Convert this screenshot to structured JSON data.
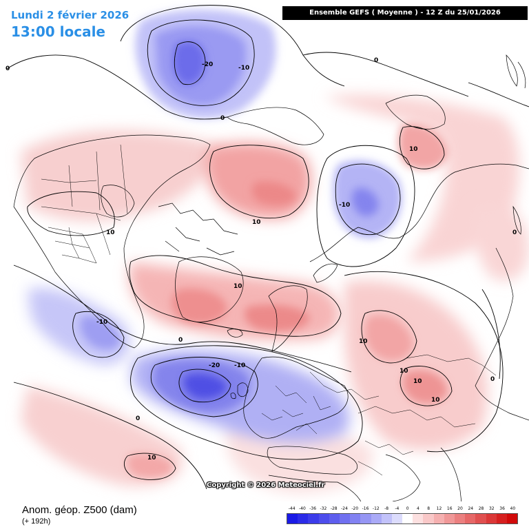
{
  "header": {
    "date": "Lundi 2 février 2026",
    "local_time": "13:00 locale",
    "model_run": "Ensemble GEFS  ( Moyenne )  -  12 Z du 25/01/2026"
  },
  "footer": {
    "variable": "Anom. géop. Z500 (dam)",
    "lead_time": "(+ 192h)",
    "copyright": "Copyright © 2026 Meteociel.fr"
  },
  "legend": {
    "labels": [
      "-44",
      "-40",
      "-36",
      "-32",
      "-28",
      "-24",
      "-20",
      "-16",
      "-12",
      "-8",
      "-4",
      "0",
      "4",
      "8",
      "12",
      "16",
      "20",
      "24",
      "28",
      "32",
      "36",
      "40"
    ],
    "colors": [
      "#1a1ae6",
      "#2b2be8",
      "#3c3cea",
      "#4d4dec",
      "#5e5eee",
      "#7070f0",
      "#8282f2",
      "#9696f4",
      "#aaaaf7",
      "#c2c2fa",
      "#dcdcfc",
      "#ffffff",
      "#fce0e0",
      "#f9c8c8",
      "#f5b0b0",
      "#f09898",
      "#eb8080",
      "#e66868",
      "#e05050",
      "#db3838",
      "#d62020",
      "#d10a0a"
    ]
  },
  "contour_labels": [
    {
      "text": "-20"
    },
    {
      "text": "-10"
    },
    {
      "text": "0"
    },
    {
      "text": "0"
    },
    {
      "text": "10"
    },
    {
      "text": "10"
    },
    {
      "text": "-10"
    },
    {
      "text": "10"
    },
    {
      "text": "0"
    },
    {
      "text": "10"
    },
    {
      "text": "10"
    },
    {
      "text": "0"
    },
    {
      "text": "-10"
    },
    {
      "text": "10"
    },
    {
      "text": "0"
    },
    {
      "text": "-20"
    },
    {
      "text": "-10"
    },
    {
      "text": "10"
    },
    {
      "text": "10"
    },
    {
      "text": "0"
    },
    {
      "text": "0"
    },
    {
      "text": "10"
    }
  ],
  "colors": {
    "title_blue": "#2a8fe6",
    "negative_anomaly": "#5e5eee",
    "positive_anomaly": "#f09898"
  }
}
